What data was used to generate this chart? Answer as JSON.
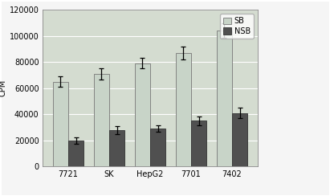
{
  "categories": [
    "7721",
    "SK",
    "HepG2",
    "7701",
    "7402"
  ],
  "sb_values": [
    65000,
    71000,
    79000,
    87000,
    104000
  ],
  "nsb_values": [
    20000,
    28000,
    29000,
    35000,
    41000
  ],
  "sb_errors": [
    4000,
    4500,
    4000,
    5000,
    5500
  ],
  "nsb_errors": [
    2500,
    3000,
    2500,
    3500,
    4000
  ],
  "sb_color": "#c8d4c8",
  "nsb_color": "#505050",
  "ylabel": "CPM",
  "ylim": [
    0,
    120000
  ],
  "yticks": [
    0,
    20000,
    40000,
    60000,
    80000,
    100000,
    120000
  ],
  "fig_bg_color": "#f5f5f5",
  "plot_bg_color": "#d4dcd0",
  "grid_color": "#ffffff",
  "bar_width": 0.38,
  "legend_labels": [
    "SB",
    "NSB"
  ],
  "outer_border_color": "#aaaaaa"
}
